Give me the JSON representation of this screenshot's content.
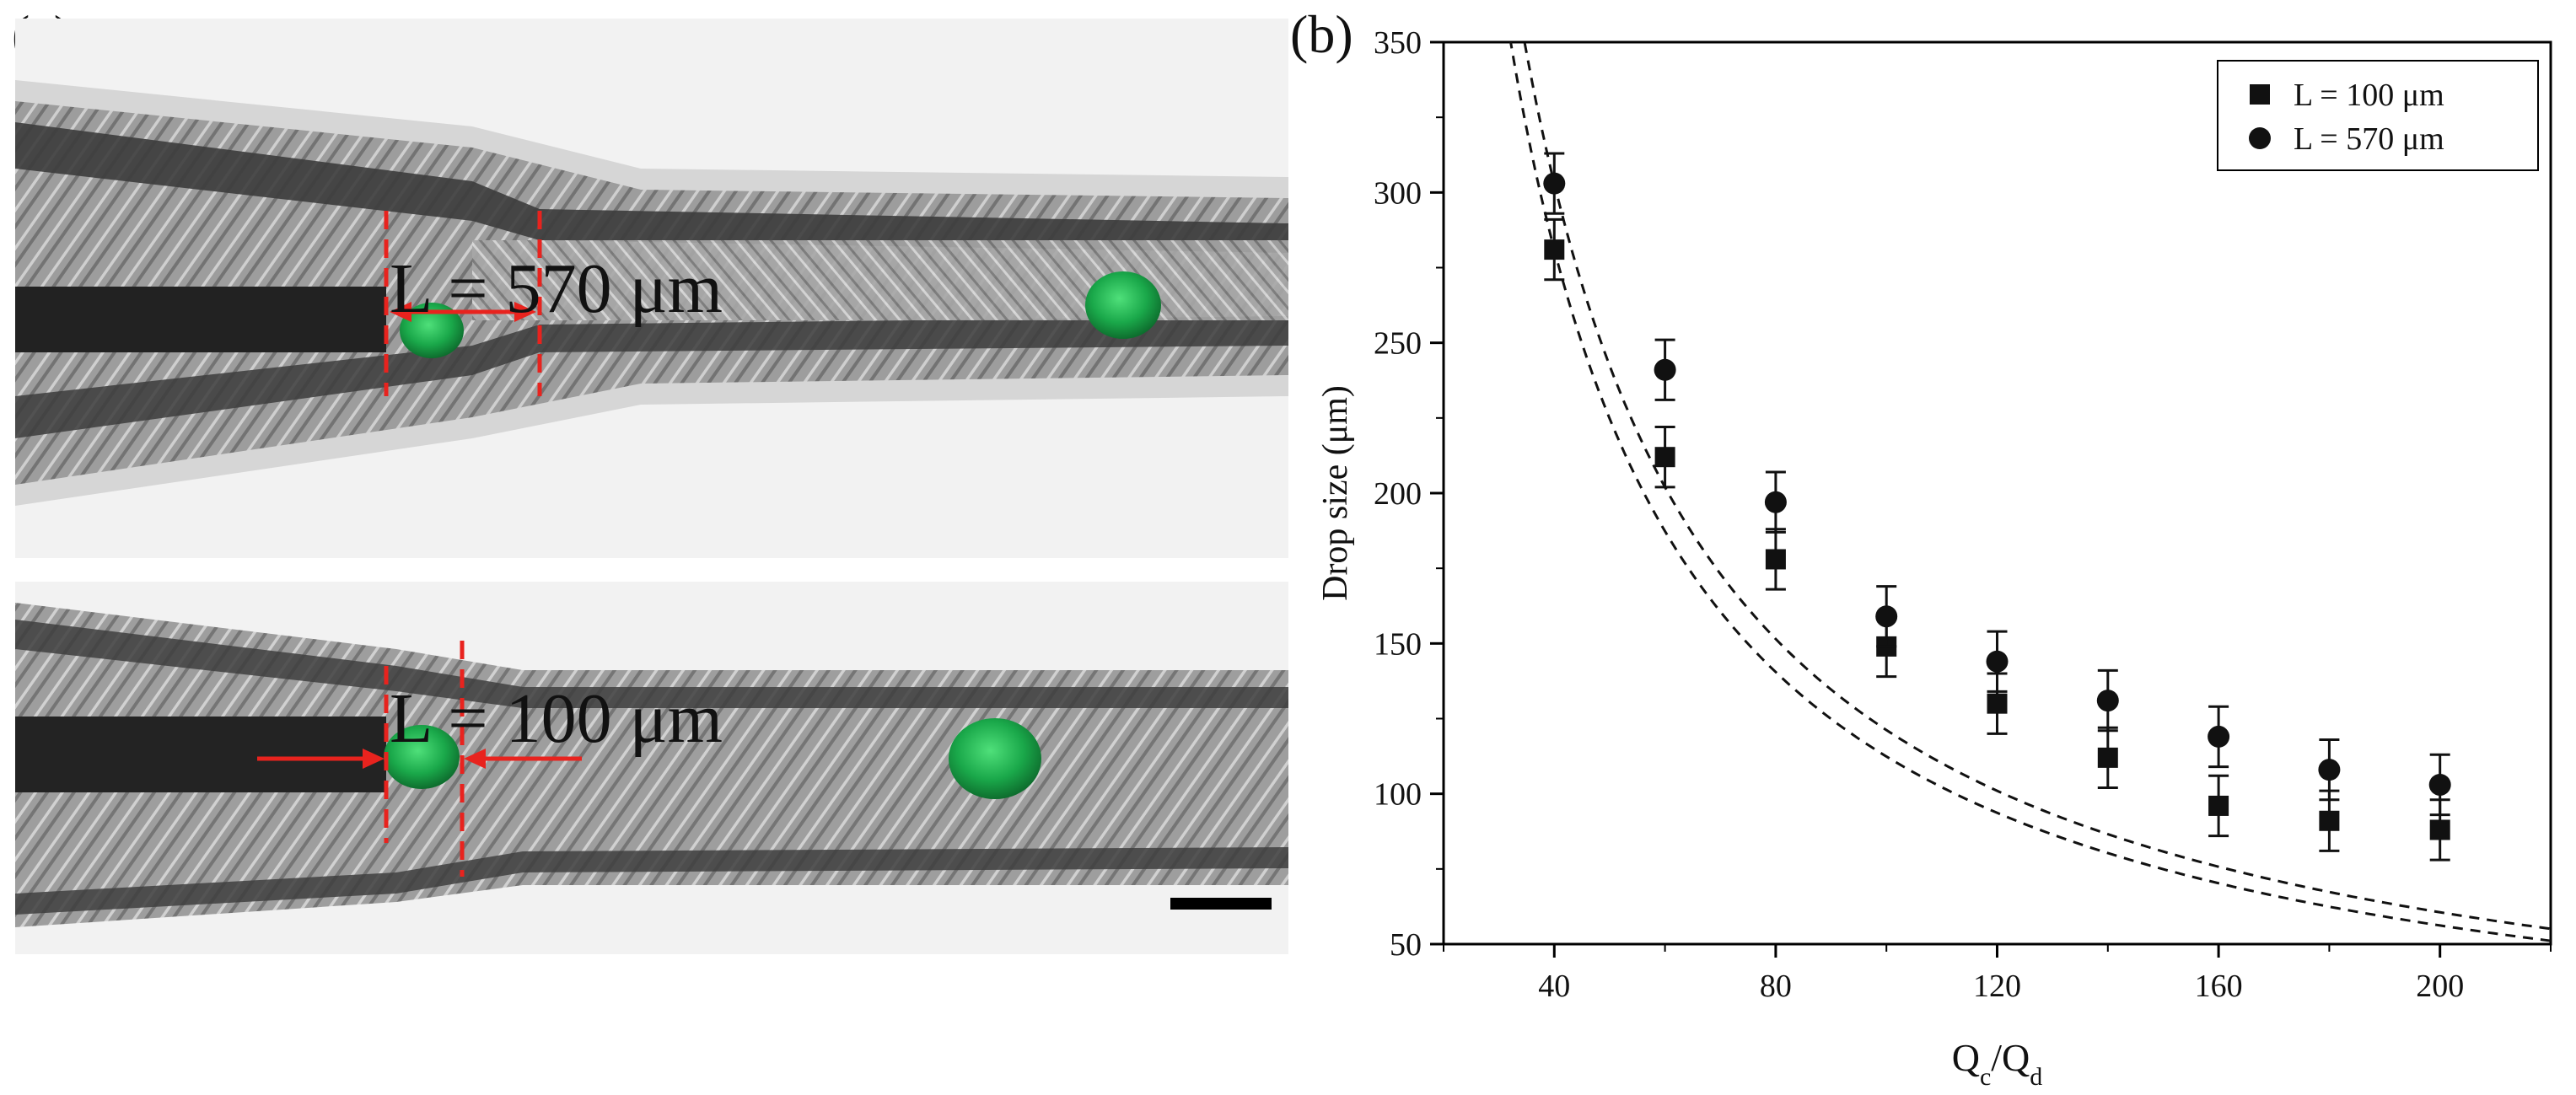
{
  "panels": {
    "a_label": "(a)",
    "b_label": "(b)"
  },
  "micrographs": {
    "top_annotation": "L = 570 μm",
    "bottom_annotation": "L = 100 μm"
  },
  "colors": {
    "droplet": "#1aa84a",
    "annotation": "#e8231e",
    "marker": "#111111"
  },
  "chart_data": {
    "type": "scatter",
    "title": "",
    "xlabel": "Q_c/Q_d",
    "xlabel_main": "Q",
    "xlabel_sub1": "c",
    "xlabel_slash": "/Q",
    "xlabel_sub2": "d",
    "ylabel": "Drop size (μm)",
    "xlim": [
      20,
      220
    ],
    "ylim": [
      50,
      350
    ],
    "xticks": [
      40,
      80,
      120,
      160,
      200
    ],
    "xtick_labels": [
      "40",
      "80",
      "120",
      "160",
      "200"
    ],
    "yticks": [
      50,
      100,
      150,
      200,
      250,
      300,
      350
    ],
    "ytick_labels": [
      "50",
      "100",
      "150",
      "200",
      "250",
      "300",
      "350"
    ],
    "legend_position": "top-right",
    "series": [
      {
        "name": "L = 100 μm",
        "marker": "square",
        "x": [
          40,
          60,
          80,
          100,
          120,
          140,
          160,
          180,
          200
        ],
        "y": [
          281,
          212,
          178,
          149,
          130,
          112,
          96,
          91,
          88
        ],
        "error": [
          10,
          10,
          10,
          10,
          10,
          10,
          10,
          10,
          10
        ],
        "fit": "power",
        "fit_k": 11240,
        "fit_x_range": [
          32,
          220
        ]
      },
      {
        "name": "L = 570 μm",
        "marker": "circle",
        "x": [
          40,
          60,
          80,
          100,
          120,
          140,
          160,
          180,
          200
        ],
        "y": [
          303,
          241,
          197,
          159,
          144,
          131,
          119,
          108,
          103
        ],
        "error": [
          10,
          10,
          10,
          10,
          10,
          10,
          10,
          10,
          10
        ],
        "fit": "power",
        "fit_k": 12120,
        "fit_x_range": [
          32,
          220
        ]
      }
    ]
  }
}
